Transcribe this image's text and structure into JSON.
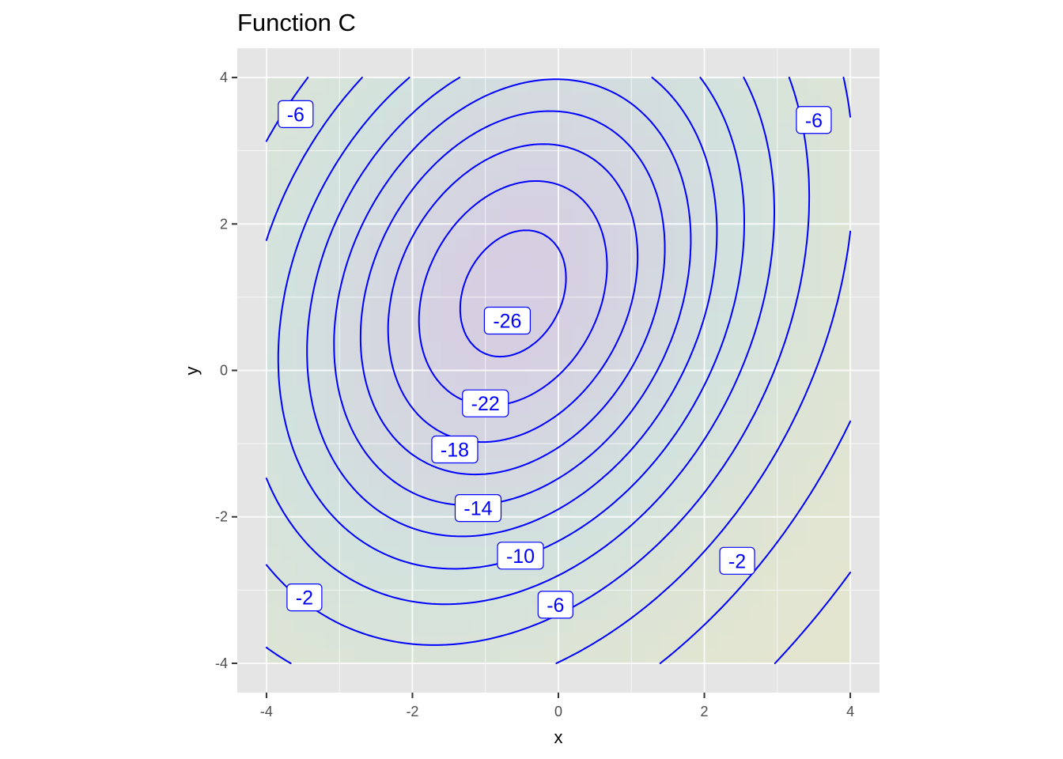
{
  "chart_data": {
    "type": "contour",
    "title": "Function C",
    "xlabel": "x",
    "ylabel": "y",
    "xlim": [
      -4.4,
      4.4
    ],
    "ylim": [
      -4.4,
      4.4
    ],
    "x_ticks": [
      -4,
      -2,
      0,
      2,
      4
    ],
    "y_ticks": [
      -4,
      -2,
      0,
      2,
      4
    ],
    "x_tick_labels": [
      "-4",
      "-2",
      "0",
      "2",
      "4"
    ],
    "y_tick_labels": [
      "-4",
      "-2",
      "0",
      "2",
      "4"
    ],
    "grid": true,
    "legend": "none",
    "panel_background": "#e5e5e5",
    "contour_color": "#0000ff",
    "fill_colors": {
      "low": "#d6cee2",
      "mid": "#d2e2de",
      "high": "#e8e6cc"
    },
    "contour_levels": [
      -26,
      -24,
      -22,
      -20,
      -18,
      -16,
      -14,
      -12,
      -10,
      -8,
      -6,
      -4,
      -2
    ],
    "contour_labels": [
      {
        "text": "-6",
        "x": -3.6,
        "y": 3.5
      },
      {
        "text": "-6",
        "x": 3.5,
        "y": 3.42
      },
      {
        "text": "-26",
        "x": -0.7,
        "y": 0.68
      },
      {
        "text": "-22",
        "x": -1.0,
        "y": -0.45
      },
      {
        "text": "-18",
        "x": -1.42,
        "y": -1.08
      },
      {
        "text": "-14",
        "x": -1.1,
        "y": -1.88
      },
      {
        "text": "-10",
        "x": -0.52,
        "y": -2.53
      },
      {
        "text": "-6",
        "x": -0.04,
        "y": -3.2
      },
      {
        "text": "-2",
        "x": -3.48,
        "y": -3.1
      },
      {
        "text": "-2",
        "x": 2.45,
        "y": -2.6
      }
    ]
  }
}
